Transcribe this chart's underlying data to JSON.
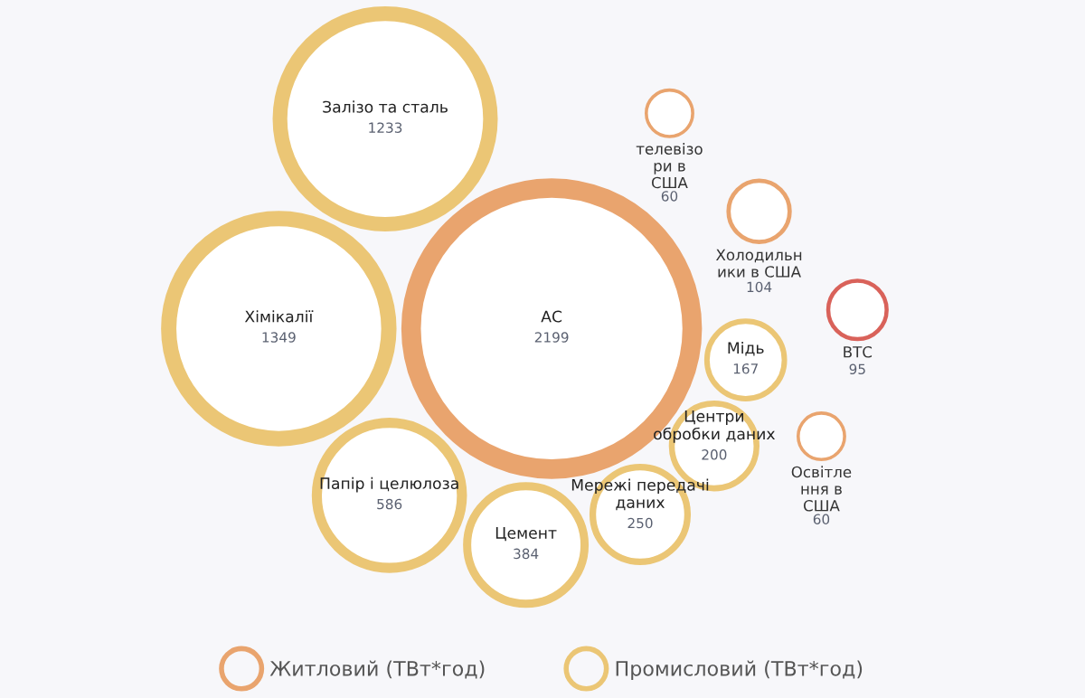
{
  "chart_data": {
    "type": "other",
    "categories": [
      "Хімікалії",
      "Залізо та сталь",
      "Мережі передачі\nданих",
      "Папір і целюлоза",
      "Цемент",
      "Мідь",
      "Центри\nобробки даних",
      "ВТС",
      "Холодильн\nики в США",
      "телевізо\nри в\nСША",
      "Освітле\nння в\nСША",
      "АС"
    ],
    "series": [
      {
        "name": "Житловий (ТВт*год)",
        "color": "#e9a46e",
        "values": [
          null,
          null,
          null,
          null,
          null,
          null,
          null,
          null,
          104,
          60,
          60,
          2199
        ]
      },
      {
        "name": "Промисловий (ТВт*год)",
        "color": "#ebc675",
        "values": [
          1349,
          1233,
          250,
          586,
          384,
          167,
          200,
          null,
          null,
          null,
          null,
          null
        ]
      },
      {
        "color": "#d9625a",
        "values": [
          null,
          null,
          null,
          null,
          null,
          null,
          null,
          95,
          null,
          null,
          null,
          null
        ]
      }
    ],
    "data_labels": true,
    "legend": "bottom"
  }
}
